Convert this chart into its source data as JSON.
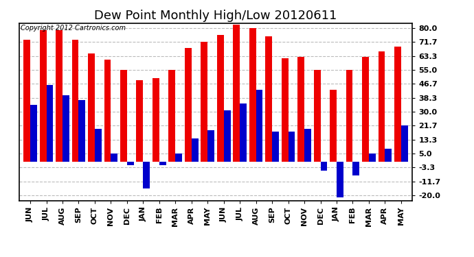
{
  "title": "Dew Point Monthly High/Low 20120611",
  "copyright_text": "Copyright 2012 Cartronics.com",
  "categories": [
    "JUN",
    "JUL",
    "AUG",
    "SEP",
    "OCT",
    "NOV",
    "DEC",
    "JAN",
    "FEB",
    "MAR",
    "APR",
    "MAY",
    "JUN",
    "JUL",
    "AUG",
    "SEP",
    "OCT",
    "NOV",
    "DEC",
    "JAN",
    "FEB",
    "MAR",
    "APR",
    "MAY"
  ],
  "high_values": [
    73,
    79,
    79,
    73,
    65,
    61,
    55,
    49,
    50,
    55,
    68,
    72,
    76,
    82,
    80,
    75,
    62,
    63,
    55,
    43,
    55,
    63,
    66,
    69
  ],
  "low_values": [
    34,
    46,
    40,
    37,
    20,
    5,
    -2,
    -16,
    -2,
    5,
    14,
    19,
    31,
    35,
    43,
    18,
    18,
    20,
    -5,
    -21,
    -8,
    5,
    8,
    22
  ],
  "high_color": "#ee0000",
  "low_color": "#0000cc",
  "background_color": "#ffffff",
  "plot_bg_color": "#ffffff",
  "yticks": [
    80.0,
    71.7,
    63.3,
    55.0,
    46.7,
    38.3,
    30.0,
    21.7,
    13.3,
    5.0,
    -3.3,
    -11.7,
    -20.0
  ],
  "ylim": [
    -23,
    83
  ],
  "title_fontsize": 13,
  "tick_fontsize": 8,
  "bar_width": 0.42,
  "grid_color": "#bbbbbb",
  "border_color": "#000000"
}
